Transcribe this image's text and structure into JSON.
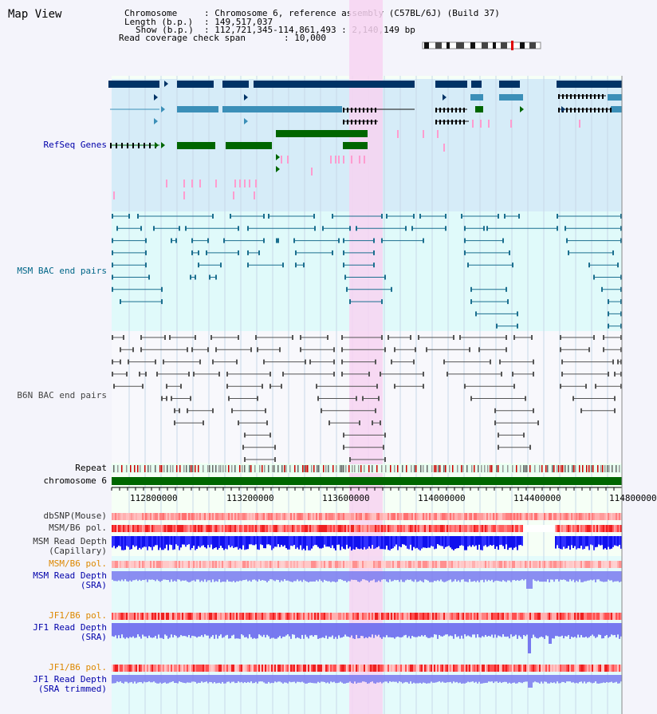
{
  "title": "Map View",
  "header": {
    "chromosome_key": "Chromosome",
    "chromosome_val": ": Chromosome 6, reference assembly (C57BL/6J) (Build 37)",
    "length_key": "Length (b.p.)",
    "length_val": ": 149,517,037",
    "show_key": "Show (b.p.)",
    "show_val": ": 112,721,345-114,861,493 : 2,140,149 bp",
    "span_key": "Read coverage check span",
    "span_val": ": 10,000"
  },
  "tracks": {
    "refseq": "RefSeq Genes",
    "msm_bac": "MSM BAC end pairs",
    "b6n_bac": "B6N BAC end pairs",
    "repeat": "Repeat",
    "chromosome": "chromosome 6",
    "dbsnp": "dbSNP(Mouse)",
    "msm_pol": "MSM/B6 pol.",
    "msm_depth_cap_1": "MSM Read Depth",
    "msm_depth_cap_2": "(Capillary)",
    "msm_pol_2": "MSM/B6 pol.",
    "msm_depth_sra_1": "MSM Read Depth",
    "msm_depth_sra_2": "(SRA)",
    "jf1_pol": "JF1/B6 pol.",
    "jf1_depth_sra_1": "JF1 Read Depth",
    "jf1_depth_sra_2": "(SRA)",
    "jf1_pol_2": "JF1/B6 pol.",
    "jf1_depth_trim_1": "JF1 Read Depth",
    "jf1_depth_trim_2": "(SRA trimmed)"
  },
  "axis": {
    "ticks": [
      "112800000",
      "113200000",
      "113600000",
      "114000000",
      "114400000",
      "114800000"
    ]
  },
  "colors": {
    "label_blue": "#0000aa",
    "label_teal": "#006688",
    "label_gray": "#444444",
    "label_orange": "#dd8800",
    "refseq_bg": "#d6ecf8",
    "msm_bac_bg": "#e0fafa",
    "highlight": "#f7d4f1",
    "dark_green": "#006600",
    "navy": "#003366"
  }
}
